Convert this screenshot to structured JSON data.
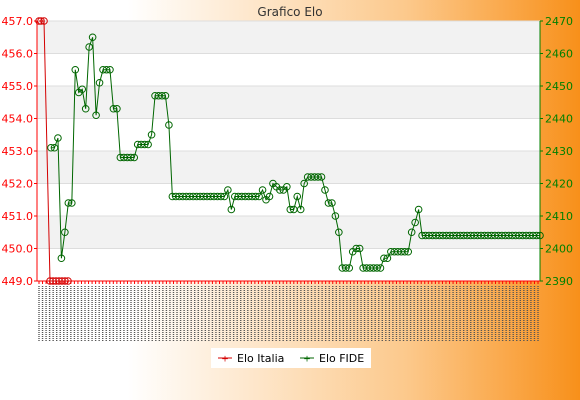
{
  "chart_data": {
    "type": "line",
    "title": "Grafico Elo",
    "left_axis": {
      "ylim": [
        449.0,
        457.0
      ],
      "ticks": [
        "449.0",
        "450.0",
        "451.0",
        "452.0",
        "453.0",
        "454.0",
        "455.0",
        "456.0",
        "457.0"
      ],
      "color": "#ff0000"
    },
    "right_axis": {
      "ylim": [
        2390,
        2470
      ],
      "ticks": [
        "2390",
        "2400",
        "2410",
        "2420",
        "2430",
        "2440",
        "2450",
        "2460",
        "2470"
      ],
      "color": "#008000"
    },
    "series": [
      {
        "name": "Elo Italia",
        "color": "#d40000",
        "axis": "left",
        "values": [
          457,
          457,
          457,
          449,
          449,
          449,
          449,
          449,
          449,
          449
        ]
      },
      {
        "name": "Elo FIDE",
        "color": "#006600",
        "axis": "right",
        "values": [
          2431,
          2431,
          2434,
          2397,
          2405,
          2414,
          2414,
          2455,
          2448,
          2449,
          2443,
          2462,
          2465,
          2441,
          2451,
          2455,
          2455,
          2455,
          2443,
          2443,
          2428,
          2428,
          2428,
          2428,
          2428,
          2432,
          2432,
          2432,
          2432,
          2435,
          2447,
          2447,
          2447,
          2447,
          2438,
          2416,
          2416,
          2416,
          2416,
          2416,
          2416,
          2416,
          2416,
          2416,
          2416,
          2416,
          2416,
          2416,
          2416,
          2416,
          2416,
          2418,
          2412,
          2416,
          2416,
          2416,
          2416,
          2416,
          2416,
          2416,
          2416,
          2418,
          2415,
          2416,
          2420,
          2419,
          2418,
          2418,
          2419,
          2412,
          2412,
          2416,
          2412,
          2420,
          2422,
          2422,
          2422,
          2422,
          2422,
          2418,
          2414,
          2414,
          2410,
          2405,
          2394,
          2394,
          2394,
          2399,
          2400,
          2400,
          2394,
          2394,
          2394,
          2394,
          2394,
          2394,
          2397,
          2397,
          2399,
          2399,
          2399,
          2399,
          2399,
          2399,
          2405,
          2408,
          2412,
          2404,
          2404,
          2404,
          2404,
          2404,
          2404,
          2404,
          2404,
          2404,
          2404,
          2404,
          2404,
          2404,
          2404,
          2404,
          2404,
          2404,
          2404,
          2404,
          2404,
          2404,
          2404,
          2404,
          2404,
          2404,
          2404,
          2404,
          2404,
          2404,
          2404,
          2404,
          2404,
          2404,
          2404,
          2404
        ]
      }
    ],
    "legend": "bottom",
    "grid": true
  }
}
